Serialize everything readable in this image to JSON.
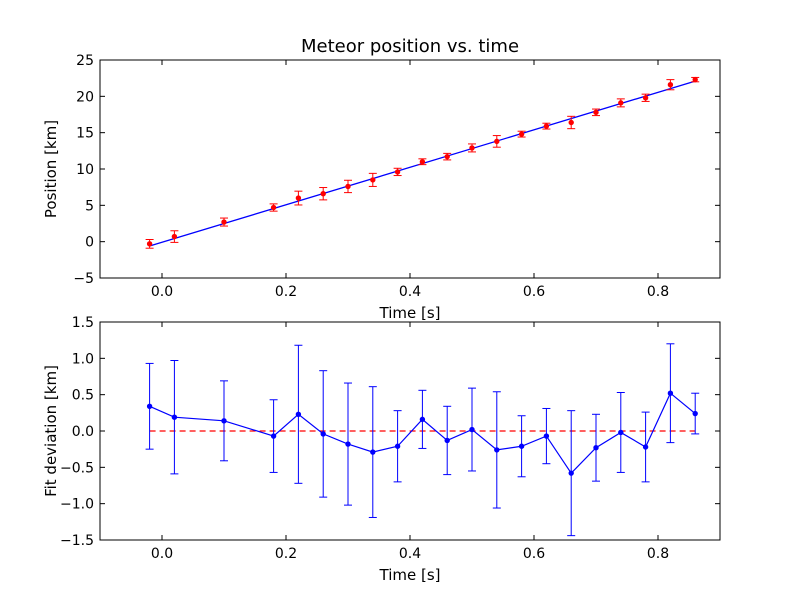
{
  "chart_data": [
    {
      "type": "line",
      "title": "Meteor position vs. time",
      "xlabel": "Time [s]",
      "ylabel": "Position [km]",
      "xlim": [
        -0.1,
        0.9
      ],
      "ylim": [
        -5,
        25
      ],
      "xticks": [
        "0.0",
        "0.2",
        "0.4",
        "0.6",
        "0.8"
      ],
      "yticks": [
        "−5",
        "0",
        "5",
        "10",
        "15",
        "20",
        "25"
      ],
      "grid": false,
      "colors": {
        "measurement": "#ff0000",
        "error_bar": "#ff0000",
        "fit": "#0000ff"
      },
      "series": [
        {
          "kind": "points-with-errorbars",
          "x": [
            -0.02,
            0.02,
            0.1,
            0.18,
            0.22,
            0.26,
            0.3,
            0.34,
            0.38,
            0.42,
            0.46,
            0.5,
            0.54,
            0.58,
            0.62,
            0.66,
            0.7,
            0.74,
            0.78,
            0.82,
            0.86
          ],
          "y": [
            -0.3,
            0.7,
            2.7,
            4.7,
            6.0,
            6.6,
            7.6,
            8.5,
            9.6,
            11.0,
            11.7,
            12.9,
            13.8,
            14.8,
            15.9,
            16.4,
            17.8,
            19.1,
            19.8,
            21.6,
            22.3
          ],
          "yerr": [
            0.6,
            0.8,
            0.55,
            0.5,
            0.95,
            0.85,
            0.85,
            0.9,
            0.5,
            0.4,
            0.45,
            0.55,
            0.8,
            0.4,
            0.4,
            0.85,
            0.45,
            0.55,
            0.5,
            0.7,
            0.3
          ]
        },
        {
          "kind": "fit-line",
          "x": [
            -0.02,
            0.86
          ],
          "y": [
            -0.6,
            22.1
          ]
        }
      ]
    },
    {
      "type": "line",
      "title": "",
      "xlabel": "Time [s]",
      "ylabel": "Fit deviation [km]",
      "xlim": [
        -0.1,
        0.9
      ],
      "ylim": [
        -1.5,
        1.5
      ],
      "xticks": [
        "0.0",
        "0.2",
        "0.4",
        "0.6",
        "0.8"
      ],
      "yticks": [
        "−1.5",
        "−1.0",
        "−0.5",
        "0.0",
        "0.5",
        "1.0",
        "1.5"
      ],
      "grid": false,
      "colors": {
        "deviation": "#0000ff",
        "zero_line": "#ff0000"
      },
      "series": [
        {
          "kind": "line-with-errorbars",
          "x": [
            -0.02,
            0.02,
            0.1,
            0.18,
            0.22,
            0.26,
            0.3,
            0.34,
            0.38,
            0.42,
            0.46,
            0.5,
            0.54,
            0.58,
            0.62,
            0.66,
            0.7,
            0.74,
            0.78,
            0.82,
            0.86
          ],
          "y": [
            0.34,
            0.19,
            0.14,
            -0.07,
            0.23,
            -0.04,
            -0.18,
            -0.29,
            -0.21,
            0.16,
            -0.13,
            0.02,
            -0.26,
            -0.21,
            -0.07,
            -0.58,
            -0.23,
            -0.02,
            -0.22,
            0.52,
            0.24
          ],
          "yerr": [
            0.59,
            0.78,
            0.55,
            0.5,
            0.95,
            0.87,
            0.84,
            0.9,
            0.49,
            0.4,
            0.47,
            0.57,
            0.8,
            0.42,
            0.38,
            0.86,
            0.46,
            0.55,
            0.48,
            0.68,
            0.28
          ]
        },
        {
          "kind": "reference-line",
          "x": [
            -0.02,
            0.86
          ],
          "y": [
            0,
            0
          ],
          "style": "dashed"
        }
      ]
    }
  ]
}
